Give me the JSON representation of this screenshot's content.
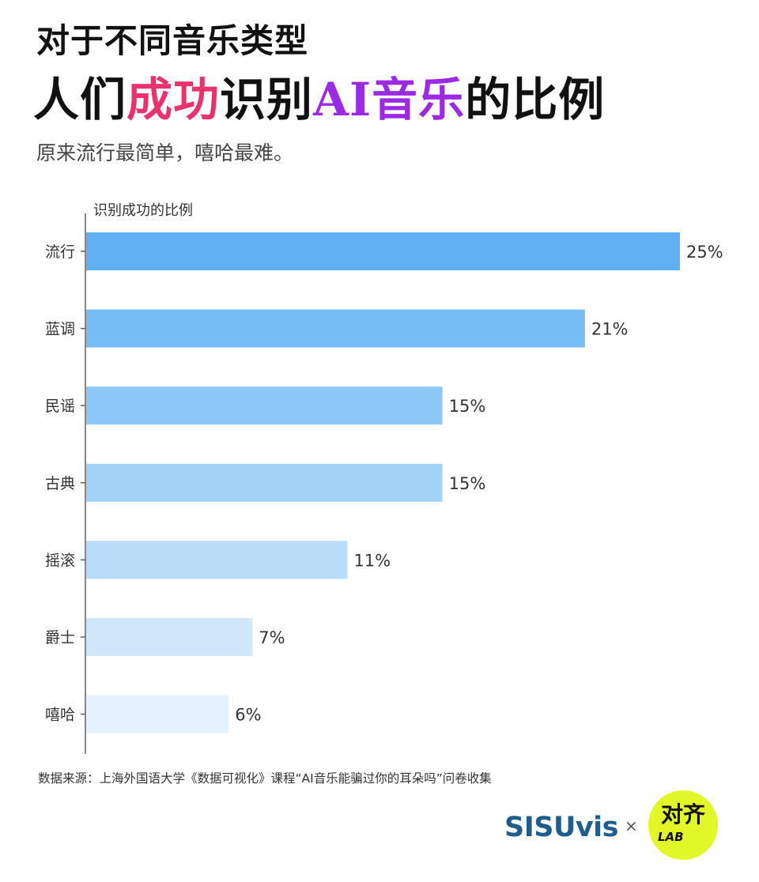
{
  "title": {
    "line1": "对于不同音乐类型",
    "line2_part1": "人们",
    "line2_part2": "成功",
    "line2_part3": "识别",
    "line2_part4": "AI音乐",
    "line2_part5": "的比例",
    "accent_pink": "#e8336e",
    "accent_purple": "#9a2be2"
  },
  "subtitle": "原来流行最简单，嘻哈最难。",
  "chart_data": {
    "type": "bar",
    "orientation": "horizontal",
    "axis_label": "识别成功的比例",
    "categories": [
      "流行",
      "蓝调",
      "民谣",
      "古典",
      "摇滚",
      "爵士",
      "嘻哈"
    ],
    "values": [
      25,
      21,
      15,
      15,
      11,
      7,
      6
    ],
    "value_labels": [
      "25%",
      "21%",
      "15%",
      "15%",
      "11%",
      "7%",
      "6%"
    ],
    "xlim": [
      0,
      25
    ],
    "colors": [
      "#61b0f3",
      "#76bcf5",
      "#8cc7f7",
      "#a2d2f8",
      "#b9ddf9",
      "#cfe7fb",
      "#e4f2fd"
    ],
    "grid": false,
    "legend": "none"
  },
  "source": "数据来源：上海外国语大学《数据可视化》课程“AI音乐能骗过你的耳朵吗”问卷收集",
  "brand": {
    "name": "SISUvis",
    "separator": "×",
    "partner_main": "对齐",
    "partner_sub": "LAB",
    "name_color": "#1f5d8e",
    "partner_color": "#e2f728"
  }
}
